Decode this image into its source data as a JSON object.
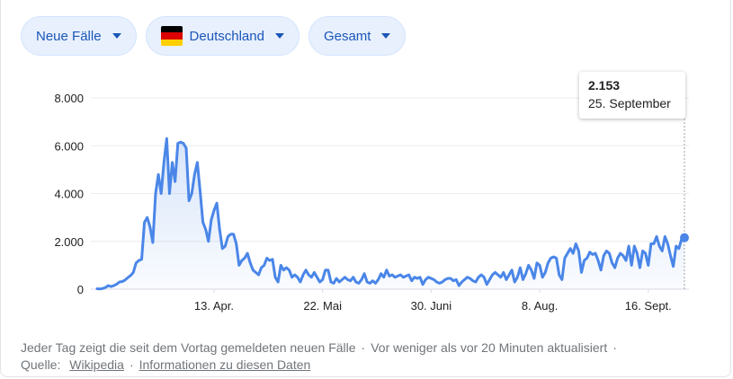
{
  "filters": [
    {
      "label": "Neue Fälle",
      "icon": "caret-down-icon"
    },
    {
      "label": "Deutschland",
      "icon": "germany-flag-icon"
    },
    {
      "label": "Gesamt",
      "icon": "caret-down-icon"
    }
  ],
  "flag_colors": [
    "#000000",
    "#dd0000",
    "#ffce00"
  ],
  "accent": "#4a86e8",
  "tooltip": {
    "value": "2.153",
    "date": "25. September"
  },
  "chart_data": {
    "type": "area",
    "title": "",
    "xlabel": "",
    "ylabel": "",
    "ylim": [
      0,
      8000
    ],
    "y_ticks": [
      0,
      2000,
      4000,
      6000,
      8000
    ],
    "y_tick_labels": [
      "0",
      "2.000",
      "4.000",
      "6.000",
      "8.000"
    ],
    "x_tick_labels": [
      "13. Apr.",
      "22. Mai",
      "30. Juni",
      "8. Aug.",
      "16. Sept."
    ],
    "x_tick_days": [
      42,
      81,
      120,
      159,
      198
    ],
    "grid": true,
    "series": [
      {
        "values": [
          20,
          10,
          30,
          70,
          150,
          110,
          150,
          210,
          300,
          320,
          380,
          480,
          570,
          700,
          1100,
          1200,
          1250,
          2800,
          3000,
          2600,
          1950,
          4000,
          4800,
          4000,
          5300,
          6300,
          4000,
          5300,
          4500,
          6100,
          6150,
          6100,
          5900,
          3700,
          4000,
          4800,
          5300,
          4100,
          2800,
          2500,
          2000,
          2900,
          3300,
          3600,
          2500,
          1700,
          1800,
          2200,
          2300,
          2300,
          1900,
          1000,
          1200,
          1300,
          1500,
          1100,
          800,
          700,
          600,
          900,
          1000,
          1300,
          1200,
          1250,
          500,
          300,
          1000,
          800,
          900,
          800,
          500,
          600,
          500,
          300,
          600,
          800,
          600,
          500,
          700,
          500,
          300,
          400,
          800,
          800,
          300,
          250,
          450,
          300,
          400,
          500,
          400,
          350,
          500,
          300,
          250,
          400,
          650,
          300,
          250,
          350,
          250,
          400,
          650,
          500,
          800,
          550,
          600,
          500,
          550,
          600,
          500,
          550,
          600,
          350,
          500,
          450,
          500,
          200,
          400,
          500,
          450,
          400,
          300,
          250,
          300,
          400,
          450,
          450,
          350,
          400,
          150,
          300,
          400,
          500,
          450,
          350,
          300,
          500,
          600,
          500,
          200,
          400,
          600,
          700,
          600,
          500,
          700,
          400,
          600,
          800,
          300,
          500,
          900,
          400,
          650,
          1000,
          800,
          450,
          1100,
          1000,
          500,
          700,
          1100,
          1300,
          1350,
          1300,
          600,
          400,
          1300,
          1500,
          1700,
          1500,
          1900,
          1600,
          700,
          1200,
          1300,
          1550,
          1450,
          1500,
          1200,
          800,
          1400,
          1600,
          1500,
          1100,
          900,
          1300,
          1500,
          1400,
          1200,
          1800,
          1000,
          1800,
          1500,
          900,
          1600,
          1500,
          1000,
          1900,
          1900,
          2200,
          1800,
          1600,
          2200,
          1900,
          1400,
          950,
          1800,
          1700,
          2100,
          2153
        ]
      }
    ]
  },
  "footer": {
    "note": "Jeder Tag zeigt die seit dem Vortag gemeldeten neuen Fälle",
    "updated": "Vor weniger als vor 20 Minuten aktualisiert",
    "source_label": "Quelle:",
    "source_link": "Wikipedia",
    "info_link": "Informationen zu diesen Daten"
  }
}
